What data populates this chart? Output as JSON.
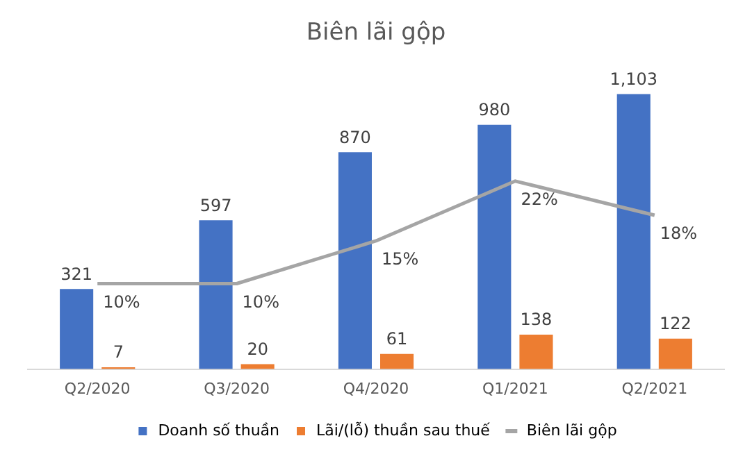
{
  "chart_data": {
    "type": "bar",
    "title": "Biên lãi gộp",
    "categories": [
      "Q2/2020",
      "Q3/2020",
      "Q4/2020",
      "Q1/2021",
      "Q2/2021"
    ],
    "series": [
      {
        "name": "Doanh số thuần",
        "color": "#4472c4",
        "values": [
          321,
          597,
          870,
          980,
          1103
        ],
        "value_labels": [
          "321",
          "597",
          "870",
          "980",
          "1,103"
        ]
      },
      {
        "name": "Lãi/(lỗ) thuần sau thuế",
        "color": "#ed7d31",
        "values": [
          7,
          20,
          61,
          138,
          122
        ]
      },
      {
        "name": "Biên lãi gộp",
        "type": "line",
        "axis": "y2",
        "color": "#a5a5a5",
        "values": [
          10,
          10,
          15,
          22,
          18
        ],
        "value_labels": [
          "10%",
          "10%",
          "15%",
          "22%",
          "18%"
        ]
      }
    ],
    "data_labels": true,
    "legend": "bottom",
    "grid": false,
    "tick_labels": "x",
    "marker": "none"
  }
}
